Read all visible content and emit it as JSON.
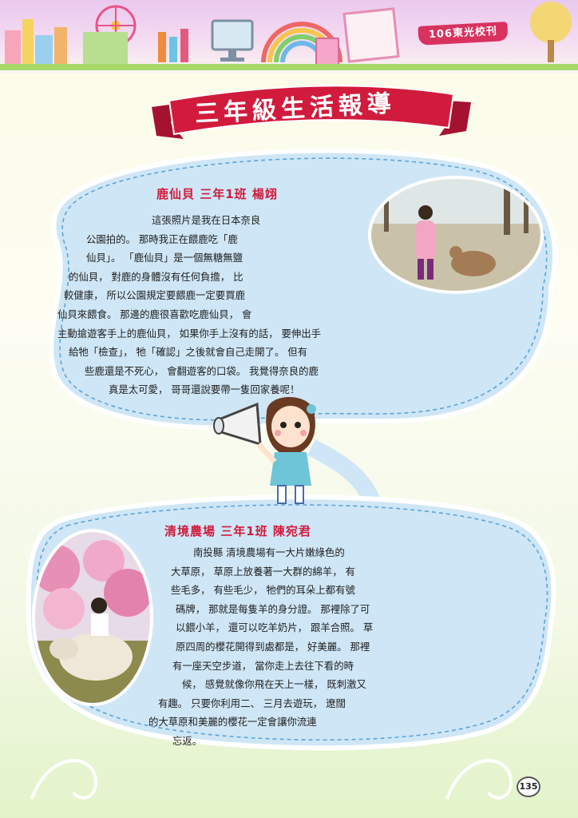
{
  "header": {
    "issue_label": "106東光校刊"
  },
  "title": "三年級生活報導",
  "section1": {
    "heading": "鹿仙貝  三年1班 楊翊",
    "lines": [
      "這張照片是我在日本奈良",
      "公園拍的。 那時我正在餵鹿吃「鹿",
      "仙貝」。 「鹿仙貝」是一個無糖無鹽",
      "的仙貝， 對鹿的身體沒有任何負擔， 比",
      "較健康， 所以公園規定要餵鹿一定要買鹿",
      "仙貝來餵食。 那邊的鹿很喜歡吃鹿仙貝， 會",
      "主動搶遊客手上的鹿仙貝， 如果你手上沒有的話， 要伸出手",
      "給牠「檢查」， 牠「確認」之後就會自己走開了。 但有",
      "些鹿還是不死心， 會翻遊客的口袋。 我覺得奈良的鹿",
      "真是太可愛， 哥哥還說要帶一隻回家養呢！"
    ]
  },
  "section2": {
    "heading": "清境農場  三年1班 陳宛君",
    "lines": [
      "南投縣 清境農場有一大片嫩綠色的",
      "大草原， 草原上放養著一大群的綿羊， 有",
      "些毛多， 有些毛少， 牠們的耳朵上都有號",
      "碼牌， 那就是每隻羊的身分證。 那裡除了可",
      "以餵小羊， 還可以吃羊奶片， 跟羊合照。 草",
      "原四周的櫻花開得到處都是， 好美麗。 那裡",
      "有一座天空步道， 當你走上去往下看的時",
      "候， 感覺就像你飛在天上一樣， 既刺激又",
      "有趣。 只要你利用二、 三月去遊玩， 遼闊",
      "的大草原和美麗的櫻花一定會讓你流連",
      "忘返。"
    ]
  },
  "footer": {
    "page_number": "135"
  },
  "colors": {
    "accent_red": "#d11b3c",
    "bubble_fill": "#cfe6f6",
    "bubble_stroke": "#5aa4d8"
  }
}
